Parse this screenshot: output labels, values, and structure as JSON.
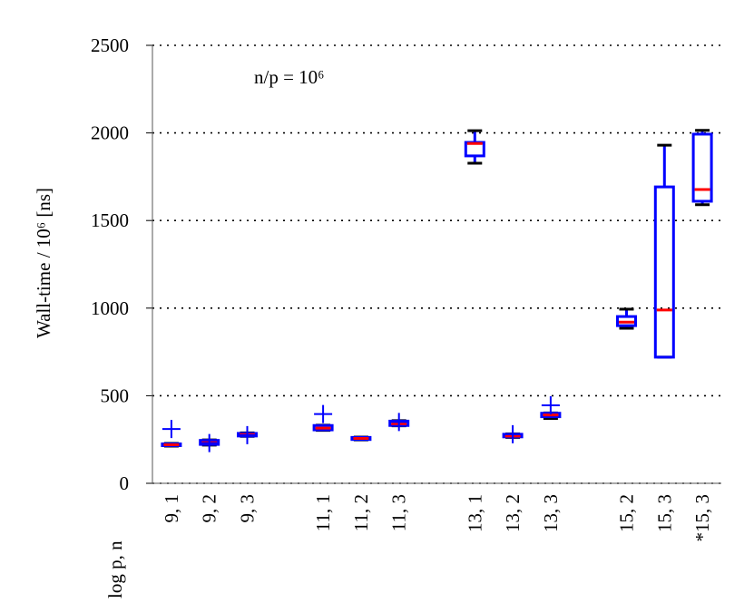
{
  "chart_data": {
    "type": "box",
    "annotation": "n/p = 10⁶",
    "ylabel": "Wall-time / 10⁶ [ns]",
    "xlabel": "log p, n",
    "categories": [
      "9, 1",
      "9, 2",
      "9, 3",
      null,
      "11, 1",
      "11, 2",
      "11, 3",
      null,
      "13, 1",
      "13, 2",
      "13, 3",
      null,
      "15, 2",
      "15, 3",
      "*15, 3"
    ],
    "box_color": "#0000ff",
    "median_color": "#ff0000",
    "whisker_color": "#000000",
    "boxes": [
      {
        "whislo": 212,
        "q1": 215,
        "med": 220,
        "q3": 225,
        "whishi": 228,
        "fliers": [
          310
        ]
      },
      {
        "whislo": 218,
        "q1": 222,
        "med": 232,
        "q3": 245,
        "whishi": 248,
        "fliers": [
          230
        ]
      },
      {
        "whislo": 268,
        "q1": 270,
        "med": 278,
        "q3": 285,
        "whishi": 288,
        "fliers": [
          275
        ]
      },
      null,
      {
        "whislo": 302,
        "q1": 305,
        "med": 315,
        "q3": 330,
        "whishi": 332,
        "fliers": [
          395
        ]
      },
      {
        "whislo": 248,
        "q1": 250,
        "med": 256,
        "q3": 262,
        "whishi": 264,
        "fliers": []
      },
      {
        "whislo": 328,
        "q1": 330,
        "med": 340,
        "q3": 355,
        "whishi": 358,
        "fliers": [
          350
        ]
      },
      null,
      {
        "whislo": 1827,
        "q1": 1869,
        "med": 1940,
        "q3": 1946,
        "whishi": 2013,
        "fliers": []
      },
      {
        "whislo": 262,
        "q1": 265,
        "med": 270,
        "q3": 280,
        "whishi": 282,
        "fliers": [
          280
        ]
      },
      {
        "whislo": 370,
        "q1": 380,
        "med": 390,
        "q3": 400,
        "whishi": 402,
        "fliers": [
          445
        ]
      },
      null,
      {
        "whislo": 885,
        "q1": 900,
        "med": 920,
        "q3": 952,
        "whishi": 994,
        "fliers": []
      },
      {
        "whislo": 720,
        "q1": 720,
        "med": 989,
        "q3": 1692,
        "whishi": 1930,
        "fliers": []
      },
      {
        "whislo": 1590,
        "q1": 1610,
        "med": 1677,
        "q3": 1993,
        "whishi": 2015,
        "fliers": []
      }
    ],
    "ylim": [
      0,
      2500
    ],
    "yticks": [
      0,
      500,
      1000,
      1500,
      2000,
      2500
    ],
    "grid": true
  }
}
